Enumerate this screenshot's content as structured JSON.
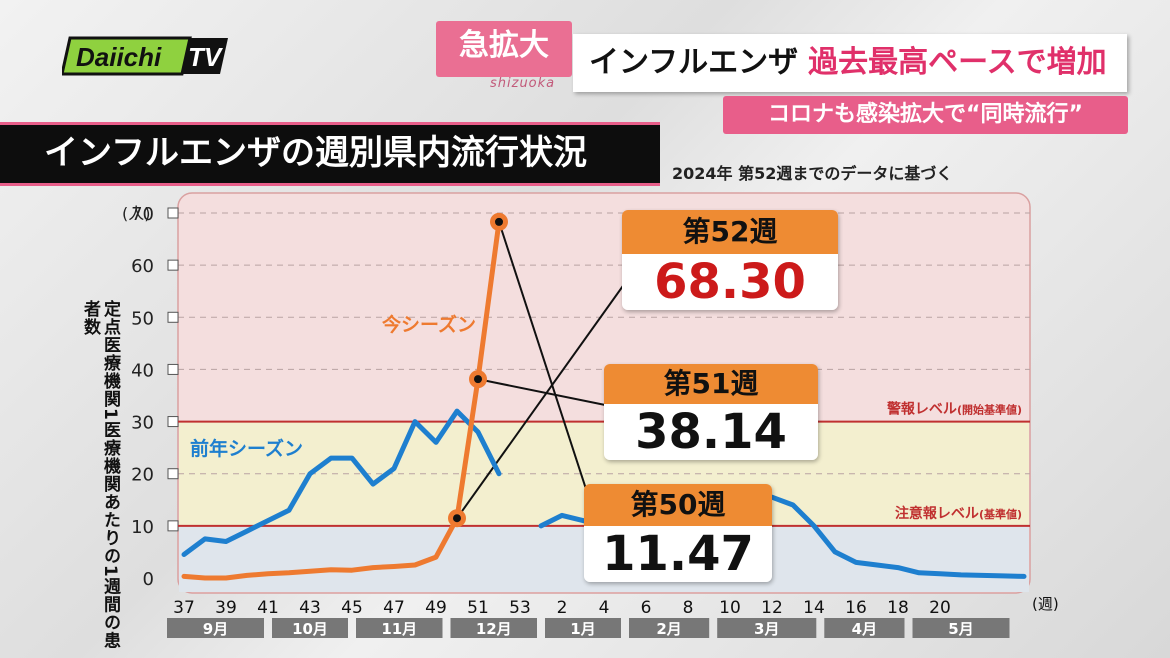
{
  "logo": {
    "text": "Daiichi",
    "suffix": "TV"
  },
  "banner": {
    "tag": "急拡大",
    "tag_sub": "shizuoka",
    "headline_a": "インフルエンザ",
    "headline_b": "過去最高ペースで増加",
    "subhead": "コロナも感染拡大で“同時流行”"
  },
  "title": "インフルエンザの週別県内流行状況",
  "note": "2024年 第52週までのデータに基づく",
  "callouts": [
    {
      "week": "第52週",
      "value": "68.30",
      "color": "#cc1a1a"
    },
    {
      "week": "第51週",
      "value": "38.14",
      "color": "#111111"
    },
    {
      "week": "第50週",
      "value": "11.47",
      "color": "#111111"
    }
  ],
  "chart_data": {
    "type": "line",
    "y_unit": "(人)",
    "x_unit": "(週)",
    "ylabel": "定点医療機関1医療機関あたりの1週間の患者数",
    "ylim": [
      0,
      70
    ],
    "yticks": [
      0,
      10,
      20,
      30,
      40,
      50,
      60,
      70
    ],
    "xtick_labels": [
      "37",
      "39",
      "41",
      "43",
      "45",
      "47",
      "49",
      "51",
      "53",
      "2",
      "4",
      "6",
      "8",
      "10",
      "12",
      "14",
      "16",
      "18",
      "20"
    ],
    "month_labels": [
      "9月",
      "10月",
      "11月",
      "12月",
      "1月",
      "2月",
      "3月",
      "4月",
      "5月"
    ],
    "thresholds": [
      {
        "name": "警報レベル",
        "note": "(開始基準値)",
        "value": 30
      },
      {
        "name": "注意報レベル",
        "note": "(基準値)",
        "value": 10
      }
    ],
    "series": [
      {
        "name": "前年シーズン",
        "color": "#1e7fcf",
        "x": [
          37,
          38,
          39,
          40,
          41,
          42,
          43,
          44,
          45,
          46,
          47,
          48,
          49,
          50,
          51,
          52
        ],
        "y": [
          4.5,
          7.5,
          7,
          9,
          11,
          13,
          20,
          23,
          23,
          18,
          21,
          30,
          26,
          32,
          28,
          20
        ]
      },
      {
        "name": "前年シーズン_cont",
        "color": "#1e7fcf",
        "x": [
          54,
          55,
          56,
          57,
          58,
          59,
          60,
          61,
          62,
          63,
          64,
          65,
          66,
          67,
          68,
          69,
          70,
          71,
          72,
          73,
          74,
          75,
          76,
          77
        ],
        "y": [
          10,
          12,
          11,
          10,
          10,
          10,
          13,
          14,
          13,
          14,
          16,
          15.5,
          14,
          10,
          5,
          3,
          2.5,
          2,
          1,
          0.8,
          0.6,
          0.5,
          0.4,
          0.3
        ]
      },
      {
        "name": "今シーズン",
        "color": "#ee7a30",
        "x": [
          37,
          38,
          39,
          40,
          41,
          42,
          43,
          44,
          45,
          46,
          47,
          48,
          49,
          50,
          51,
          52
        ],
        "y": [
          0.3,
          0,
          0,
          0.5,
          0.8,
          1.0,
          1.3,
          1.6,
          1.5,
          2.0,
          2.2,
          2.5,
          4.0,
          11.47,
          38.14,
          68.3
        ]
      }
    ]
  }
}
